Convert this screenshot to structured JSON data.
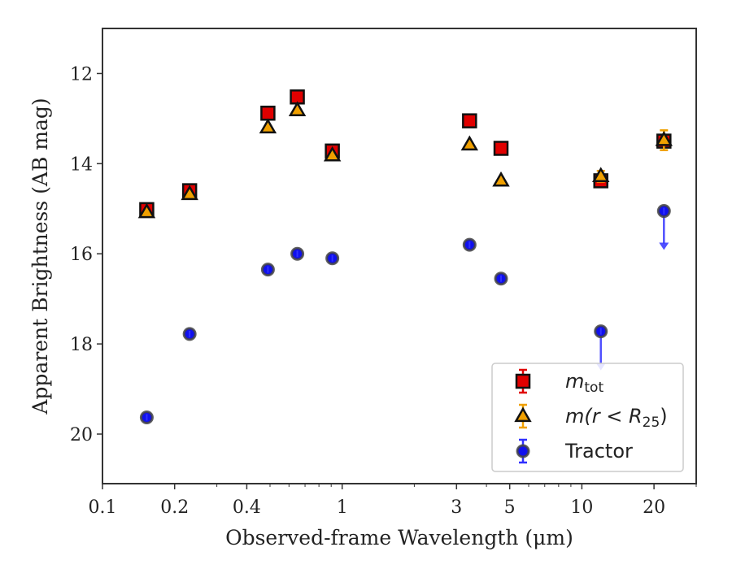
{
  "chart_data": {
    "type": "scatter",
    "xlabel": "Observed-frame Wavelength (μm)",
    "ylabel": "Apparent Brightness (AB mag)",
    "xscale": "log",
    "xlim": [
      0.1,
      30
    ],
    "ylim": [
      21.1,
      11.0
    ],
    "y_inverted": true,
    "grid": false,
    "legend_position": "lower right",
    "x_ticks": [
      {
        "value": 0.1,
        "label": "0.1"
      },
      {
        "value": 0.2,
        "label": "0.2"
      },
      {
        "value": 0.4,
        "label": "0.4"
      },
      {
        "value": 1,
        "label": "1"
      },
      {
        "value": 3,
        "label": "3"
      },
      {
        "value": 5,
        "label": "5"
      },
      {
        "value": 10,
        "label": "10"
      },
      {
        "value": 20,
        "label": "20"
      }
    ],
    "y_ticks": [
      12,
      14,
      16,
      18,
      20
    ],
    "series": [
      {
        "key": "mtot",
        "legend_main": "m",
        "legend_sub": "tot",
        "marker": "square",
        "color": "#e00000",
        "errcolor": "#e00000",
        "points": [
          {
            "x": 0.153,
            "y": 15.02
          },
          {
            "x": 0.231,
            "y": 14.6
          },
          {
            "x": 0.49,
            "y": 12.88
          },
          {
            "x": 0.65,
            "y": 12.52
          },
          {
            "x": 0.91,
            "y": 13.72
          },
          {
            "x": 3.4,
            "y": 13.05
          },
          {
            "x": 4.6,
            "y": 13.66
          },
          {
            "x": 12.0,
            "y": 14.38
          },
          {
            "x": 22.0,
            "y": 13.5
          }
        ]
      },
      {
        "key": "mr25",
        "legend_main": "m(r < R",
        "legend_sub": "25",
        "legend_tail": ")",
        "marker": "triangle",
        "color": "#f0a000",
        "errcolor": "#f0a000",
        "points": [
          {
            "x": 0.153,
            "y": 15.08
          },
          {
            "x": 0.231,
            "y": 14.68
          },
          {
            "x": 0.49,
            "y": 13.2
          },
          {
            "x": 0.65,
            "y": 12.82
          },
          {
            "x": 0.91,
            "y": 13.82
          },
          {
            "x": 3.4,
            "y": 13.58
          },
          {
            "x": 4.6,
            "y": 14.38
          },
          {
            "x": 12.0,
            "y": 14.28,
            "err": 0.12
          },
          {
            "x": 22.0,
            "y": 13.48,
            "err": 0.22
          }
        ]
      },
      {
        "key": "tractor",
        "legend_main": "Tractor",
        "marker": "circle",
        "color": "#1010ee",
        "errcolor": "#3030ff",
        "points": [
          {
            "x": 0.153,
            "y": 19.63
          },
          {
            "x": 0.231,
            "y": 17.78
          },
          {
            "x": 0.49,
            "y": 16.35
          },
          {
            "x": 0.65,
            "y": 16.0
          },
          {
            "x": 0.91,
            "y": 16.1
          },
          {
            "x": 3.4,
            "y": 15.8
          },
          {
            "x": 4.6,
            "y": 16.55
          },
          {
            "x": 12.0,
            "y": 17.72,
            "upper_limit": true
          },
          {
            "x": 22.0,
            "y": 15.05,
            "upper_limit": true
          }
        ]
      }
    ]
  }
}
